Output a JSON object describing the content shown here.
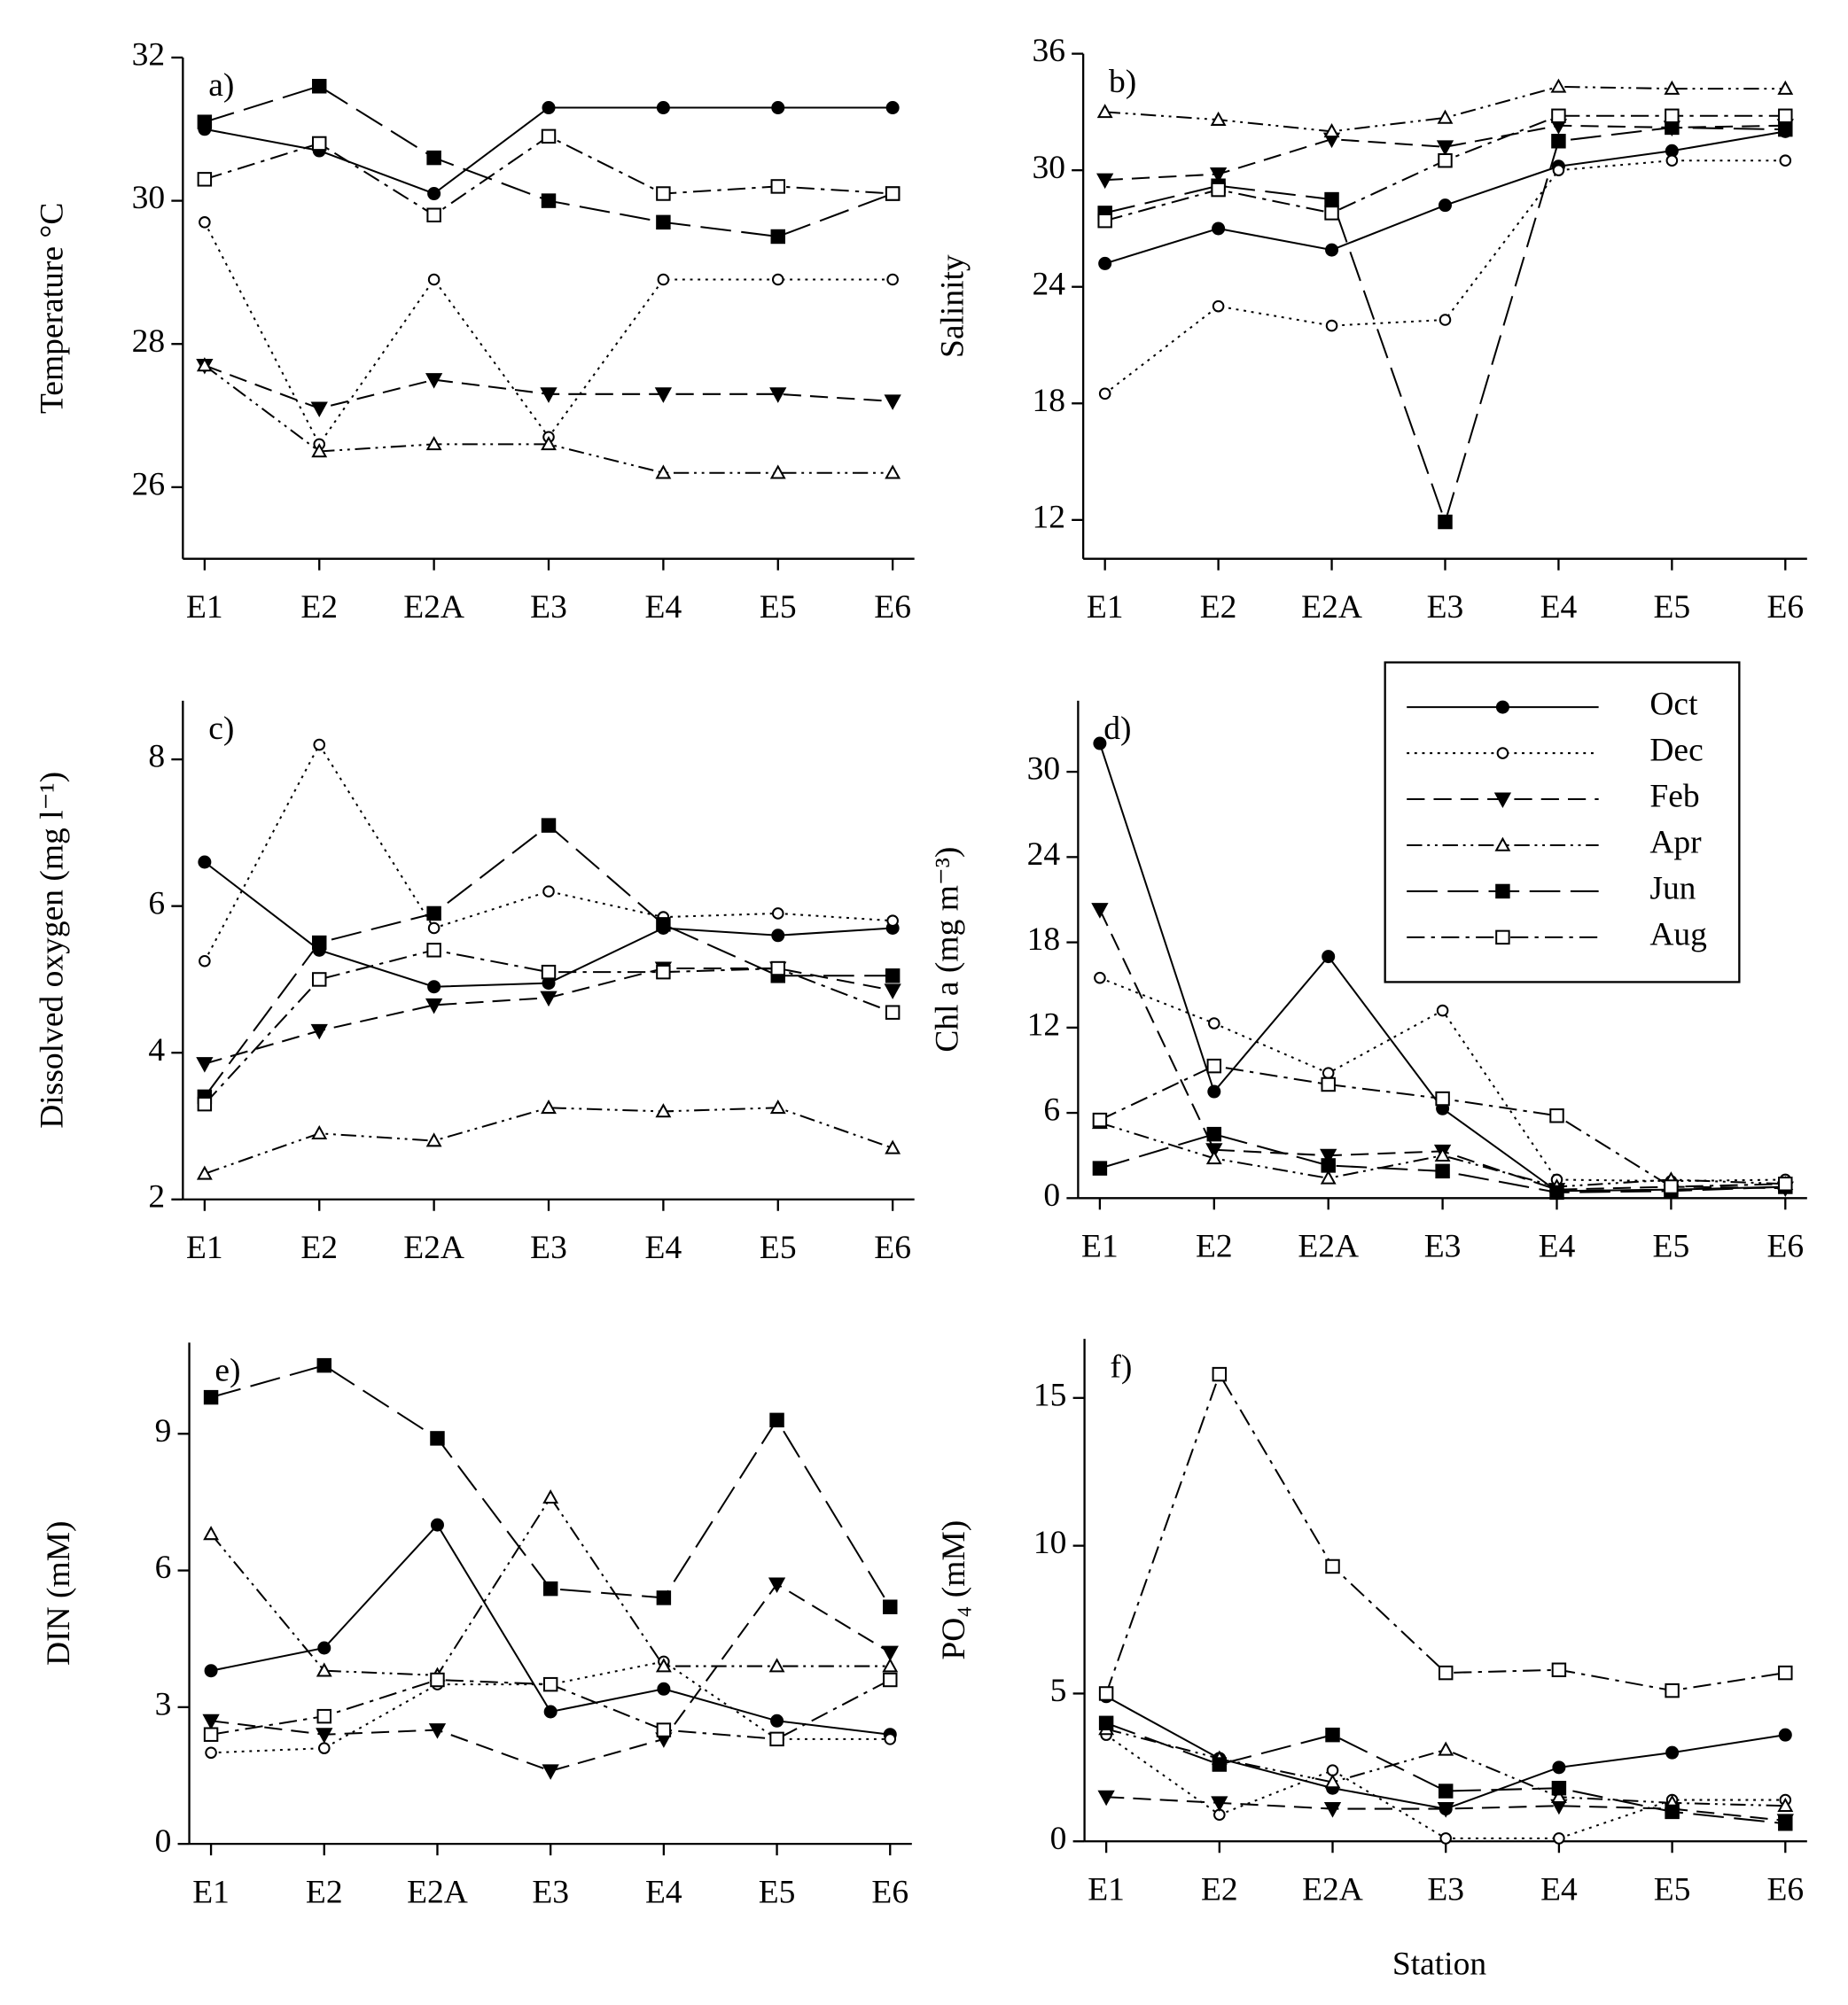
{
  "chart_data": [
    {
      "type": "line",
      "panel": "a)",
      "ylabel": "Temperature °C",
      "categories": [
        "E1",
        "E2",
        "E2A",
        "E3",
        "E4",
        "E5",
        "E6"
      ],
      "ylim": [
        25,
        32
      ],
      "yticks": [
        26,
        28,
        30,
        32
      ],
      "series": [
        {
          "name": "Oct",
          "color": "#000000",
          "marker": "filled-circle",
          "linestyle": "solid",
          "values": [
            31.0,
            30.7,
            30.1,
            31.3,
            31.3,
            31.3,
            31.3
          ]
        },
        {
          "name": "Dec",
          "color": "#000000",
          "marker": "open-circle",
          "linestyle": "dotted",
          "values": [
            29.7,
            26.6,
            28.9,
            26.7,
            28.9,
            28.9,
            28.9
          ]
        },
        {
          "name": "Feb",
          "color": "#000000",
          "marker": "filled-triangle-down",
          "linestyle": "dashed",
          "values": [
            27.7,
            27.1,
            27.5,
            27.3,
            27.3,
            27.3,
            27.2
          ]
        },
        {
          "name": "Apr",
          "color": "#000000",
          "marker": "open-triangle-up",
          "linestyle": "dash-dot-dot",
          "values": [
            27.7,
            26.5,
            26.6,
            26.6,
            26.2,
            26.2,
            26.2
          ]
        },
        {
          "name": "Jun",
          "color": "#000000",
          "marker": "filled-square",
          "linestyle": "long-dash",
          "values": [
            31.1,
            31.6,
            30.6,
            30.0,
            29.7,
            29.5,
            30.1
          ]
        },
        {
          "name": "Aug",
          "color": "#000000",
          "marker": "open-square",
          "linestyle": "dash-dot",
          "values": [
            30.3,
            30.8,
            29.8,
            30.9,
            30.1,
            30.2,
            30.1
          ]
        }
      ]
    },
    {
      "type": "line",
      "panel": "b)",
      "ylabel": "Salinity",
      "categories": [
        "E1",
        "E2",
        "E2A",
        "E3",
        "E4",
        "E5",
        "E6"
      ],
      "ylim": [
        10,
        36
      ],
      "yticks": [
        12,
        18,
        24,
        30,
        36
      ],
      "series": [
        {
          "name": "Oct",
          "color": "#000000",
          "marker": "filled-circle",
          "linestyle": "solid",
          "values": [
            25.2,
            27.0,
            25.9,
            28.2,
            30.2,
            31.0,
            32.0
          ]
        },
        {
          "name": "Dec",
          "color": "#000000",
          "marker": "open-circle",
          "linestyle": "dotted",
          "values": [
            18.5,
            23.0,
            22.0,
            22.3,
            30.0,
            30.5,
            30.5
          ]
        },
        {
          "name": "Feb",
          "color": "#000000",
          "marker": "filled-triangle-down",
          "linestyle": "dashed",
          "values": [
            29.5,
            29.8,
            31.6,
            31.2,
            32.3,
            32.2,
            32.3
          ]
        },
        {
          "name": "Apr",
          "color": "#000000",
          "marker": "open-triangle-up",
          "linestyle": "dash-dot-dot",
          "values": [
            33.0,
            32.6,
            32.0,
            32.7,
            34.3,
            34.2,
            34.2
          ]
        },
        {
          "name": "Jun",
          "color": "#000000",
          "marker": "filled-square",
          "linestyle": "long-dash",
          "values": [
            27.8,
            29.2,
            28.5,
            11.9,
            31.5,
            32.2,
            32.1
          ]
        },
        {
          "name": "Aug",
          "color": "#000000",
          "marker": "open-square",
          "linestyle": "dash-dot",
          "values": [
            27.4,
            29.0,
            27.8,
            30.5,
            32.8,
            32.8,
            32.8
          ]
        }
      ]
    },
    {
      "type": "line",
      "panel": "c)",
      "ylabel": "Dissolved oxygen (mg l⁻¹)",
      "categories": [
        "E1",
        "E2",
        "E2A",
        "E3",
        "E4",
        "E5",
        "E6"
      ],
      "ylim": [
        2,
        8.8
      ],
      "yticks": [
        2,
        4,
        6,
        8
      ],
      "series": [
        {
          "name": "Oct",
          "color": "#000000",
          "marker": "filled-circle",
          "linestyle": "solid",
          "values": [
            6.6,
            5.4,
            4.9,
            4.95,
            5.7,
            5.6,
            5.7
          ]
        },
        {
          "name": "Dec",
          "color": "#000000",
          "marker": "open-circle",
          "linestyle": "dotted",
          "values": [
            5.25,
            8.2,
            5.7,
            6.2,
            5.85,
            5.9,
            5.8
          ]
        },
        {
          "name": "Feb",
          "color": "#000000",
          "marker": "filled-triangle-down",
          "linestyle": "dashed",
          "values": [
            3.85,
            4.3,
            4.65,
            4.75,
            5.15,
            5.15,
            4.85
          ]
        },
        {
          "name": "Apr",
          "color": "#000000",
          "marker": "open-triangle-up",
          "linestyle": "dash-dot-dot",
          "values": [
            2.35,
            2.9,
            2.8,
            3.25,
            3.2,
            3.25,
            2.7
          ]
        },
        {
          "name": "Jun",
          "color": "#000000",
          "marker": "filled-square",
          "linestyle": "long-dash",
          "values": [
            3.4,
            5.5,
            5.9,
            7.1,
            5.75,
            5.05,
            5.05
          ]
        },
        {
          "name": "Aug",
          "color": "#000000",
          "marker": "open-square",
          "linestyle": "dash-dot",
          "values": [
            3.3,
            5.0,
            5.4,
            5.1,
            5.1,
            5.15,
            4.55
          ]
        }
      ]
    },
    {
      "type": "line",
      "panel": "d)",
      "ylabel": "Chl a (mg m⁻³)",
      "legend": "upper right",
      "categories": [
        "E1",
        "E2",
        "E2A",
        "E3",
        "E4",
        "E5",
        "E6"
      ],
      "ylim": [
        0,
        35
      ],
      "yticks": [
        0,
        6,
        12,
        18,
        24,
        30
      ],
      "series": [
        {
          "name": "Oct",
          "color": "#000000",
          "marker": "filled-circle",
          "linestyle": "solid",
          "values": [
            32.0,
            7.5,
            17.0,
            6.3,
            0.5,
            0.6,
            0.8
          ]
        },
        {
          "name": "Dec",
          "color": "#000000",
          "marker": "open-circle",
          "linestyle": "dotted",
          "values": [
            15.5,
            12.3,
            8.8,
            13.2,
            1.3,
            1.2,
            1.3
          ]
        },
        {
          "name": "Feb",
          "color": "#000000",
          "marker": "filled-triangle-down",
          "linestyle": "dashed",
          "values": [
            20.3,
            3.4,
            3.0,
            3.3,
            0.6,
            0.8,
            0.7
          ]
        },
        {
          "name": "Apr",
          "color": "#000000",
          "marker": "open-triangle-up",
          "linestyle": "dash-dot-dot",
          "values": [
            5.3,
            2.8,
            1.4,
            3.0,
            0.8,
            1.3,
            1.0
          ]
        },
        {
          "name": "Jun",
          "color": "#000000",
          "marker": "filled-square",
          "linestyle": "long-dash",
          "values": [
            2.1,
            4.5,
            2.3,
            1.9,
            0.4,
            0.5,
            0.8
          ]
        },
        {
          "name": "Aug",
          "color": "#000000",
          "marker": "open-square",
          "linestyle": "dash-dot",
          "values": [
            5.5,
            9.3,
            8.0,
            7.0,
            5.8,
            0.8,
            1.0
          ]
        }
      ]
    },
    {
      "type": "line",
      "panel": "e)",
      "ylabel": "DIN (mM)",
      "categories": [
        "E1",
        "E2",
        "E2A",
        "E3",
        "E4",
        "E5",
        "E6"
      ],
      "ylim": [
        0,
        11
      ],
      "yticks": [
        0,
        3,
        6,
        9
      ],
      "series": [
        {
          "name": "Oct",
          "color": "#000000",
          "marker": "filled-circle",
          "linestyle": "solid",
          "values": [
            3.8,
            4.3,
            7.0,
            2.9,
            3.4,
            2.7,
            2.4
          ]
        },
        {
          "name": "Dec",
          "color": "#000000",
          "marker": "open-circle",
          "linestyle": "dotted",
          "values": [
            2.0,
            2.1,
            3.5,
            3.5,
            4.0,
            2.3,
            2.3
          ]
        },
        {
          "name": "Feb",
          "color": "#000000",
          "marker": "filled-triangle-down",
          "linestyle": "dashed",
          "values": [
            2.7,
            2.4,
            2.5,
            1.6,
            2.3,
            5.7,
            4.2
          ]
        },
        {
          "name": "Apr",
          "color": "#000000",
          "marker": "open-triangle-up",
          "linestyle": "dash-dot-dot",
          "values": [
            6.8,
            3.8,
            3.7,
            7.6,
            3.9,
            3.9,
            3.9
          ]
        },
        {
          "name": "Jun",
          "color": "#000000",
          "marker": "filled-square",
          "linestyle": "long-dash",
          "values": [
            9.8,
            10.5,
            8.9,
            5.6,
            5.4,
            9.3,
            5.2
          ]
        },
        {
          "name": "Aug",
          "color": "#000000",
          "marker": "open-square",
          "linestyle": "dash-dot",
          "values": [
            2.4,
            2.8,
            3.6,
            3.5,
            2.5,
            2.3,
            3.6
          ]
        }
      ]
    },
    {
      "type": "line",
      "panel": "f)",
      "ylabel": "PO₄ (mM)",
      "xlabel": "Station",
      "categories": [
        "E1",
        "E2",
        "E2A",
        "E3",
        "E4",
        "E5",
        "E6"
      ],
      "ylim": [
        0,
        17
      ],
      "yticks": [
        0,
        5,
        10,
        15
      ],
      "series": [
        {
          "name": "Oct",
          "color": "#000000",
          "marker": "filled-circle",
          "linestyle": "solid",
          "values": [
            4.9,
            2.8,
            1.8,
            1.1,
            2.5,
            3.0,
            3.6
          ]
        },
        {
          "name": "Dec",
          "color": "#000000",
          "marker": "open-circle",
          "linestyle": "dotted",
          "values": [
            3.6,
            0.9,
            2.4,
            0.1,
            0.1,
            1.4,
            1.4
          ]
        },
        {
          "name": "Feb",
          "color": "#000000",
          "marker": "filled-triangle-down",
          "linestyle": "dashed",
          "values": [
            1.5,
            1.3,
            1.1,
            1.1,
            1.2,
            1.1,
            0.7
          ]
        },
        {
          "name": "Apr",
          "color": "#000000",
          "marker": "open-triangle-up",
          "linestyle": "dash-dot-dot",
          "values": [
            3.8,
            2.8,
            2.0,
            3.1,
            1.5,
            1.3,
            1.2
          ]
        },
        {
          "name": "Jun",
          "color": "#000000",
          "marker": "filled-square",
          "linestyle": "long-dash",
          "values": [
            4.0,
            2.6,
            3.6,
            1.7,
            1.8,
            1.0,
            0.6
          ]
        },
        {
          "name": "Aug",
          "color": "#000000",
          "marker": "open-square",
          "linestyle": "dash-dot",
          "values": [
            5.0,
            15.8,
            9.3,
            5.7,
            5.8,
            5.1,
            5.7
          ]
        }
      ]
    }
  ]
}
